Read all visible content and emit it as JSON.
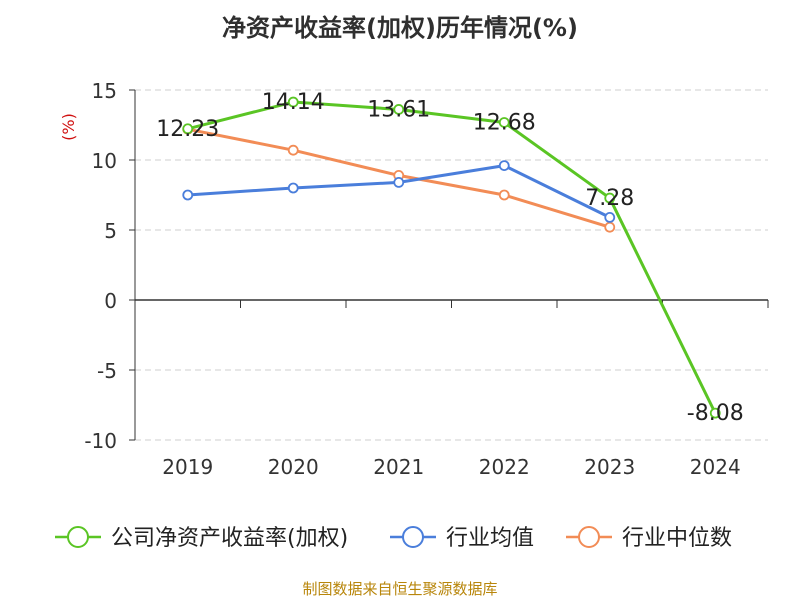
{
  "title": "净资产收益率(加权)历年情况(%)",
  "footer": "制图数据来自恒生聚源数据库",
  "chart_data": {
    "type": "line",
    "title": "净资产收益率(加权)历年情况(%)",
    "ylabel": "(%)",
    "x": [
      "2019",
      "2020",
      "2021",
      "2022",
      "2023",
      "2024"
    ],
    "ylim": [
      -10,
      15
    ],
    "yticks": [
      15,
      10,
      5,
      0,
      -5,
      -10
    ],
    "grid": true,
    "legend_position": "bottom",
    "series": [
      {
        "name": "公司净资产收益率(加权)",
        "color": "#5ac524",
        "values": [
          12.23,
          14.14,
          13.61,
          12.68,
          7.28,
          -8.08
        ],
        "labels": [
          "12.23",
          "14.14",
          "13.61",
          "12.68",
          "7.28",
          "-8.08"
        ]
      },
      {
        "name": "行业均值",
        "color": "#4a7edb",
        "values": [
          7.5,
          8.0,
          8.4,
          9.6,
          5.9,
          null
        ]
      },
      {
        "name": "行业中位数",
        "color": "#f28c56",
        "values": [
          12.2,
          10.7,
          8.9,
          7.5,
          5.2,
          null
        ]
      }
    ]
  }
}
